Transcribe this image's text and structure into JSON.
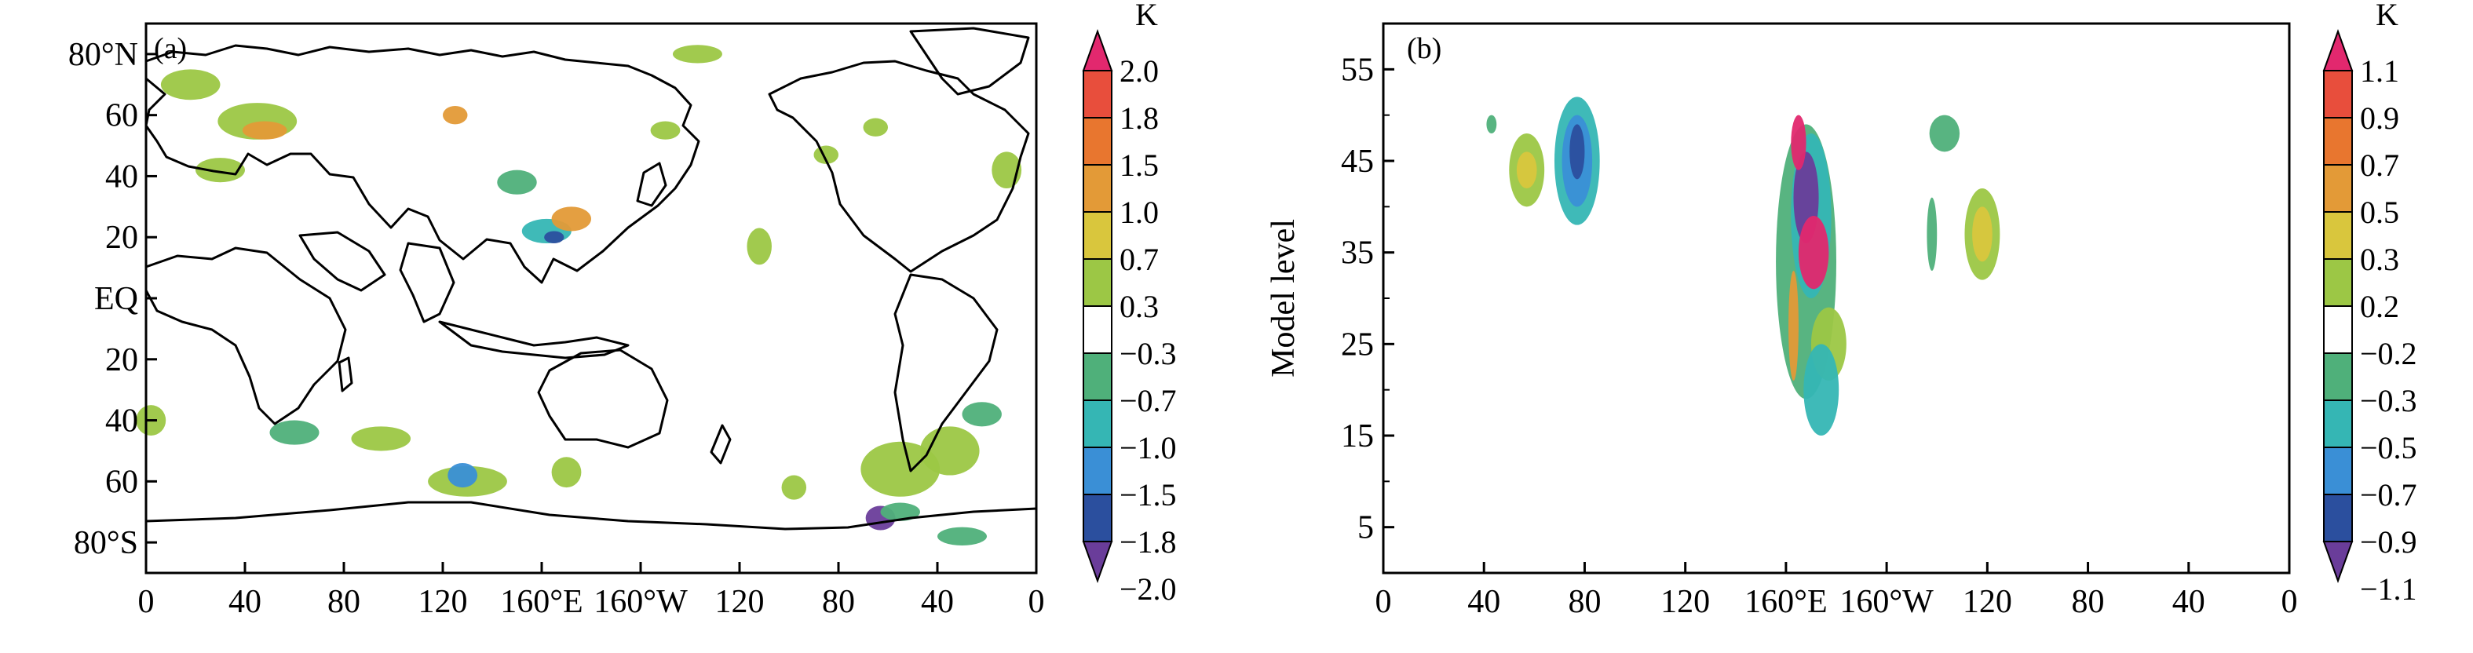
{
  "colors": {
    "a": [
      "#6a3d9a",
      "#2b4f9e",
      "#3a8fd6",
      "#35b6b4",
      "#4fb07a",
      "#ffffff",
      "#9cc745",
      "#d9c63d",
      "#e39a37",
      "#e8762f",
      "#e84e3c",
      "#e2286e"
    ],
    "b": [
      "#6a3d9a",
      "#2b4f9e",
      "#3a8fd6",
      "#35b6b4",
      "#4fb07a",
      "#ffffff",
      "#9cc745",
      "#d9c63d",
      "#e39a37",
      "#e8762f",
      "#e84e3c",
      "#e2286e"
    ]
  },
  "chart_data": [
    {
      "type": "heatmap",
      "panel_label": "(a)",
      "x_ticks": [
        "0",
        "40",
        "80",
        "120",
        "160°E",
        "160°W",
        "120",
        "80",
        "40",
        "0"
      ],
      "y_ticks": [
        "80°N",
        "60",
        "40",
        "20",
        "EQ",
        "20",
        "40",
        "60",
        "80°S"
      ],
      "xlim": [
        0,
        360
      ],
      "ylim": [
        -90,
        90
      ],
      "colorbar": {
        "unit": "K",
        "labels": [
          "2.0",
          "1.8",
          "1.5",
          "1.0",
          "0.7",
          "0.3",
          "−0.3",
          "−0.7",
          "−1.0",
          "−1.5",
          "−1.8",
          "−2.0"
        ]
      },
      "anomaly_patches": [
        {
          "lon": 18,
          "lat": 70,
          "rx": 12,
          "ry": 5,
          "level": 6
        },
        {
          "lon": 45,
          "lat": 58,
          "rx": 16,
          "ry": 6,
          "level": 6
        },
        {
          "lon": 48,
          "lat": 55,
          "rx": 9,
          "ry": 3,
          "level": 8
        },
        {
          "lon": 30,
          "lat": 42,
          "rx": 10,
          "ry": 4,
          "level": 6
        },
        {
          "lon": 125,
          "lat": 60,
          "rx": 5,
          "ry": 3,
          "level": 8
        },
        {
          "lon": 150,
          "lat": 38,
          "rx": 8,
          "ry": 4,
          "level": 4
        },
        {
          "lon": 162,
          "lat": 22,
          "rx": 10,
          "ry": 4,
          "level": 3
        },
        {
          "lon": 172,
          "lat": 26,
          "rx": 8,
          "ry": 4,
          "level": 8
        },
        {
          "lon": 165,
          "lat": 20,
          "rx": 4,
          "ry": 2,
          "level": 1
        },
        {
          "lon": 210,
          "lat": 55,
          "rx": 6,
          "ry": 3,
          "level": 6
        },
        {
          "lon": 223,
          "lat": 80,
          "rx": 10,
          "ry": 3,
          "level": 6
        },
        {
          "lon": 248,
          "lat": 17,
          "rx": 5,
          "ry": 6,
          "level": 6
        },
        {
          "lon": 275,
          "lat": 47,
          "rx": 5,
          "ry": 3,
          "level": 6
        },
        {
          "lon": 295,
          "lat": 56,
          "rx": 5,
          "ry": 3,
          "level": 6
        },
        {
          "lon": 348,
          "lat": 42,
          "rx": 6,
          "ry": 6,
          "level": 6
        },
        {
          "lon": 2,
          "lat": -40,
          "rx": 6,
          "ry": 5,
          "level": 6
        },
        {
          "lon": 60,
          "lat": -44,
          "rx": 10,
          "ry": 4,
          "level": 4
        },
        {
          "lon": 95,
          "lat": -46,
          "rx": 12,
          "ry": 4,
          "level": 6
        },
        {
          "lon": 130,
          "lat": -60,
          "rx": 16,
          "ry": 5,
          "level": 6
        },
        {
          "lon": 128,
          "lat": -58,
          "rx": 6,
          "ry": 4,
          "level": 2
        },
        {
          "lon": 170,
          "lat": -57,
          "rx": 6,
          "ry": 5,
          "level": 6
        },
        {
          "lon": 305,
          "lat": -56,
          "rx": 16,
          "ry": 9,
          "level": 6
        },
        {
          "lon": 325,
          "lat": -50,
          "rx": 12,
          "ry": 8,
          "level": 6
        },
        {
          "lon": 338,
          "lat": -38,
          "rx": 8,
          "ry": 4,
          "level": 4
        },
        {
          "lon": 262,
          "lat": -62,
          "rx": 5,
          "ry": 4,
          "level": 6
        },
        {
          "lon": 297,
          "lat": -72,
          "rx": 6,
          "ry": 4,
          "level": 0
        },
        {
          "lon": 305,
          "lat": -70,
          "rx": 8,
          "ry": 3,
          "level": 4
        },
        {
          "lon": 330,
          "lat": -78,
          "rx": 10,
          "ry": 3,
          "level": 4
        }
      ]
    },
    {
      "type": "heatmap",
      "panel_label": "(b)",
      "x_ticks": [
        "0",
        "40",
        "80",
        "120",
        "160°E",
        "160°W",
        "120",
        "80",
        "40",
        "0"
      ],
      "y_ticks": [
        "55",
        "45",
        "35",
        "25",
        "15",
        "5"
      ],
      "ylabel": "Model level",
      "xlim": [
        0,
        360
      ],
      "ylim": [
        0,
        60
      ],
      "colorbar": {
        "unit": "K",
        "labels": [
          "1.1",
          "0.9",
          "0.7",
          "0.5",
          "0.3",
          "0.2",
          "−0.2",
          "−0.3",
          "−0.5",
          "−0.7",
          "−0.9",
          "−1.1"
        ]
      },
      "anomaly_patches": [
        {
          "lon": 57,
          "lat": 44,
          "rx": 7,
          "ry": 4,
          "level": 6
        },
        {
          "lon": 57,
          "lat": 44,
          "rx": 4,
          "ry": 2,
          "level": 7
        },
        {
          "lon": 77,
          "lat": 45,
          "rx": 9,
          "ry": 7,
          "level": 3
        },
        {
          "lon": 77,
          "lat": 45,
          "rx": 6,
          "ry": 5,
          "level": 2
        },
        {
          "lon": 77,
          "lat": 46,
          "rx": 3,
          "ry": 3,
          "level": 1
        },
        {
          "lon": 168,
          "lat": 34,
          "rx": 12,
          "ry": 15,
          "level": 4
        },
        {
          "lon": 170,
          "lat": 39,
          "rx": 8,
          "ry": 9,
          "level": 3
        },
        {
          "lon": 168,
          "lat": 41,
          "rx": 5,
          "ry": 5,
          "level": 0
        },
        {
          "lon": 165,
          "lat": 47,
          "rx": 3,
          "ry": 3,
          "level": 11
        },
        {
          "lon": 171,
          "lat": 35,
          "rx": 6,
          "ry": 4,
          "level": 11
        },
        {
          "lon": 177,
          "lat": 25,
          "rx": 7,
          "ry": 4,
          "level": 6
        },
        {
          "lon": 174,
          "lat": 20,
          "rx": 7,
          "ry": 5,
          "level": 3
        },
        {
          "lon": 163,
          "lat": 27,
          "rx": 2,
          "ry": 6,
          "level": 8
        },
        {
          "lon": 238,
          "lat": 37,
          "rx": 7,
          "ry": 5,
          "level": 6
        },
        {
          "lon": 238,
          "lat": 37,
          "rx": 4,
          "ry": 3,
          "level": 7
        },
        {
          "lon": 218,
          "lat": 37,
          "rx": 2,
          "ry": 4,
          "level": 4
        },
        {
          "lon": 223,
          "lat": 48,
          "rx": 6,
          "ry": 2,
          "level": 4
        },
        {
          "lon": 43,
          "lat": 49,
          "rx": 2,
          "ry": 1,
          "level": 4
        }
      ]
    }
  ]
}
